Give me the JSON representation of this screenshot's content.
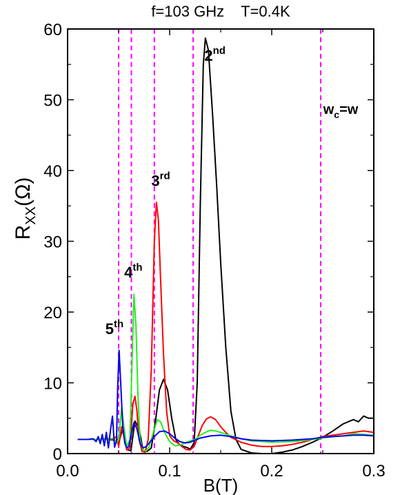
{
  "chart_data": {
    "type": "line",
    "title": "f=103 GHz    T=0.4K",
    "xlabel": "B(T)",
    "ylabel": {
      "main": "R",
      "sub": "XX",
      "unit": "(Ω)"
    },
    "xlim": [
      0.0,
      0.3
    ],
    "ylim": [
      0,
      60
    ],
    "xticks": [
      "0.0",
      "0.1",
      "0.2",
      "0.3"
    ],
    "yticks": [
      "0",
      "10",
      "20",
      "30",
      "40",
      "50",
      "60"
    ],
    "grid": false,
    "legend": "none",
    "colors": {
      "black": "#000000",
      "red": "#ff0000",
      "green": "#22ee22",
      "blue": "#0000ee",
      "dashed": "#ff00ff"
    },
    "vlines": [
      0.05,
      0.0625,
      0.085,
      0.123,
      0.248
    ],
    "annotations": [
      {
        "main": "2",
        "sup": "nd",
        "x": 0.134,
        "y": 55.5
      },
      {
        "main": "3",
        "sup": "rd",
        "x": 0.082,
        "y": 37.8
      },
      {
        "main": "4",
        "sup": "th",
        "x": 0.0555,
        "y": 24.9
      },
      {
        "main": "5",
        "sup": "th",
        "x": 0.037,
        "y": 16.9
      },
      {
        "main": "w",
        "sub": "c",
        "after": "=w",
        "x": 0.2505,
        "y": 48.0
      }
    ],
    "series": [
      {
        "color": "black",
        "points": [
          [
            0.01,
            2.0
          ],
          [
            0.02,
            2.0
          ],
          [
            0.03,
            2.0
          ],
          [
            0.04,
            2.0
          ],
          [
            0.046,
            1.9
          ],
          [
            0.05,
            1.5
          ],
          [
            0.054,
            3.5
          ],
          [
            0.058,
            0.6
          ],
          [
            0.062,
            0.4
          ],
          [
            0.066,
            4.6
          ],
          [
            0.07,
            3.5
          ],
          [
            0.074,
            0.5
          ],
          [
            0.078,
            0.3
          ],
          [
            0.082,
            0.8
          ],
          [
            0.086,
            4.5
          ],
          [
            0.09,
            9.0
          ],
          [
            0.094,
            10.5
          ],
          [
            0.098,
            9.0
          ],
          [
            0.102,
            5.0
          ],
          [
            0.106,
            2.0
          ],
          [
            0.11,
            1.2
          ],
          [
            0.114,
            1.0
          ],
          [
            0.118,
            0.8
          ],
          [
            0.12,
            0.6
          ],
          [
            0.124,
            1.5
          ],
          [
            0.127,
            10.0
          ],
          [
            0.13,
            35.0
          ],
          [
            0.133,
            55.0
          ],
          [
            0.135,
            58.7
          ],
          [
            0.138,
            57.0
          ],
          [
            0.142,
            48.0
          ],
          [
            0.146,
            38.0
          ],
          [
            0.15,
            27.0
          ],
          [
            0.155,
            15.0
          ],
          [
            0.16,
            6.0
          ],
          [
            0.165,
            2.0
          ],
          [
            0.17,
            0.6
          ],
          [
            0.18,
            0.1
          ],
          [
            0.19,
            0.0
          ],
          [
            0.2,
            0.0
          ],
          [
            0.21,
            0.2
          ],
          [
            0.22,
            0.5
          ],
          [
            0.23,
            1.0
          ],
          [
            0.24,
            1.6
          ],
          [
            0.25,
            2.3
          ],
          [
            0.26,
            3.2
          ],
          [
            0.27,
            4.2
          ],
          [
            0.28,
            4.8
          ],
          [
            0.285,
            4.5
          ],
          [
            0.29,
            5.3
          ],
          [
            0.295,
            5.0
          ],
          [
            0.3,
            5.0
          ]
        ]
      },
      {
        "color": "red",
        "points": [
          [
            0.01,
            2.0
          ],
          [
            0.03,
            2.0
          ],
          [
            0.04,
            2.1
          ],
          [
            0.045,
            2.0
          ],
          [
            0.048,
            2.5
          ],
          [
            0.05,
            1.0
          ],
          [
            0.053,
            3.8
          ],
          [
            0.056,
            2.0
          ],
          [
            0.058,
            0.5
          ],
          [
            0.061,
            0.8
          ],
          [
            0.064,
            7.0
          ],
          [
            0.066,
            8.1
          ],
          [
            0.068,
            6.0
          ],
          [
            0.07,
            2.0
          ],
          [
            0.073,
            0.3
          ],
          [
            0.076,
            0.2
          ],
          [
            0.079,
            2.0
          ],
          [
            0.082,
            12.0
          ],
          [
            0.085,
            30.0
          ],
          [
            0.087,
            35.5
          ],
          [
            0.089,
            33.0
          ],
          [
            0.091,
            25.0
          ],
          [
            0.094,
            14.0
          ],
          [
            0.097,
            6.0
          ],
          [
            0.1,
            2.5
          ],
          [
            0.104,
            1.8
          ],
          [
            0.108,
            1.5
          ],
          [
            0.112,
            1.0
          ],
          [
            0.116,
            0.6
          ],
          [
            0.12,
            0.5
          ],
          [
            0.124,
            1.0
          ],
          [
            0.128,
            2.5
          ],
          [
            0.132,
            4.0
          ],
          [
            0.136,
            4.9
          ],
          [
            0.14,
            5.2
          ],
          [
            0.145,
            4.8
          ],
          [
            0.15,
            3.8
          ],
          [
            0.155,
            3.0
          ],
          [
            0.16,
            2.3
          ],
          [
            0.17,
            1.6
          ],
          [
            0.18,
            1.2
          ],
          [
            0.19,
            1.0
          ],
          [
            0.2,
            1.0
          ],
          [
            0.21,
            1.1
          ],
          [
            0.22,
            1.3
          ],
          [
            0.23,
            1.6
          ],
          [
            0.24,
            2.0
          ],
          [
            0.25,
            2.4
          ],
          [
            0.26,
            2.6
          ],
          [
            0.27,
            2.8
          ],
          [
            0.28,
            3.0
          ],
          [
            0.29,
            3.2
          ],
          [
            0.3,
            3.0
          ]
        ]
      },
      {
        "color": "green",
        "points": [
          [
            0.01,
            2.0
          ],
          [
            0.03,
            2.0
          ],
          [
            0.04,
            2.0
          ],
          [
            0.045,
            2.2
          ],
          [
            0.048,
            1.5
          ],
          [
            0.05,
            2.0
          ],
          [
            0.053,
            6.5
          ],
          [
            0.055,
            4.0
          ],
          [
            0.058,
            1.0
          ],
          [
            0.061,
            2.0
          ],
          [
            0.063,
            12.0
          ],
          [
            0.065,
            22.5
          ],
          [
            0.067,
            18.0
          ],
          [
            0.069,
            8.0
          ],
          [
            0.071,
            2.0
          ],
          [
            0.074,
            0.5
          ],
          [
            0.077,
            0.4
          ],
          [
            0.08,
            1.0
          ],
          [
            0.084,
            3.0
          ],
          [
            0.088,
            4.8
          ],
          [
            0.091,
            4.5
          ],
          [
            0.095,
            3.0
          ],
          [
            0.1,
            1.7
          ],
          [
            0.105,
            1.1
          ],
          [
            0.11,
            1.2
          ],
          [
            0.115,
            1.5
          ],
          [
            0.12,
            1.8
          ],
          [
            0.125,
            2.0
          ],
          [
            0.13,
            2.6
          ],
          [
            0.135,
            3.0
          ],
          [
            0.14,
            3.3
          ],
          [
            0.145,
            3.2
          ],
          [
            0.15,
            3.0
          ],
          [
            0.16,
            2.5
          ],
          [
            0.17,
            2.1
          ],
          [
            0.18,
            1.8
          ],
          [
            0.2,
            1.6
          ],
          [
            0.22,
            1.7
          ],
          [
            0.24,
            2.0
          ],
          [
            0.25,
            2.2
          ],
          [
            0.26,
            2.4
          ],
          [
            0.27,
            2.5
          ],
          [
            0.28,
            2.8
          ],
          [
            0.29,
            2.7
          ],
          [
            0.3,
            2.6
          ]
        ]
      },
      {
        "color": "blue",
        "points": [
          [
            0.01,
            2.0
          ],
          [
            0.02,
            2.0
          ],
          [
            0.025,
            2.1
          ],
          [
            0.028,
            1.7
          ],
          [
            0.03,
            2.4
          ],
          [
            0.032,
            1.4
          ],
          [
            0.034,
            2.7
          ],
          [
            0.036,
            1.1
          ],
          [
            0.038,
            3.0
          ],
          [
            0.04,
            0.8
          ],
          [
            0.042,
            3.3
          ],
          [
            0.044,
            5.3
          ],
          [
            0.046,
            0.9
          ],
          [
            0.048,
            1.8
          ],
          [
            0.049,
            9.0
          ],
          [
            0.0505,
            14.6
          ],
          [
            0.052,
            10.0
          ],
          [
            0.054,
            4.0
          ],
          [
            0.056,
            1.5
          ],
          [
            0.058,
            0.8
          ],
          [
            0.06,
            1.0
          ],
          [
            0.062,
            2.5
          ],
          [
            0.065,
            4.4
          ],
          [
            0.068,
            3.5
          ],
          [
            0.071,
            1.5
          ],
          [
            0.074,
            0.8
          ],
          [
            0.077,
            1.0
          ],
          [
            0.08,
            1.5
          ],
          [
            0.085,
            2.4
          ],
          [
            0.09,
            3.1
          ],
          [
            0.095,
            3.2
          ],
          [
            0.1,
            2.8
          ],
          [
            0.105,
            2.2
          ],
          [
            0.11,
            1.7
          ],
          [
            0.115,
            1.5
          ],
          [
            0.12,
            1.6
          ],
          [
            0.125,
            1.9
          ],
          [
            0.13,
            2.2
          ],
          [
            0.14,
            2.5
          ],
          [
            0.15,
            2.6
          ],
          [
            0.16,
            2.4
          ],
          [
            0.17,
            2.1
          ],
          [
            0.18,
            1.9
          ],
          [
            0.2,
            1.8
          ],
          [
            0.22,
            1.9
          ],
          [
            0.24,
            2.1
          ],
          [
            0.25,
            2.3
          ],
          [
            0.26,
            2.4
          ],
          [
            0.27,
            2.5
          ],
          [
            0.28,
            2.6
          ],
          [
            0.29,
            2.6
          ],
          [
            0.3,
            2.5
          ]
        ]
      }
    ]
  }
}
